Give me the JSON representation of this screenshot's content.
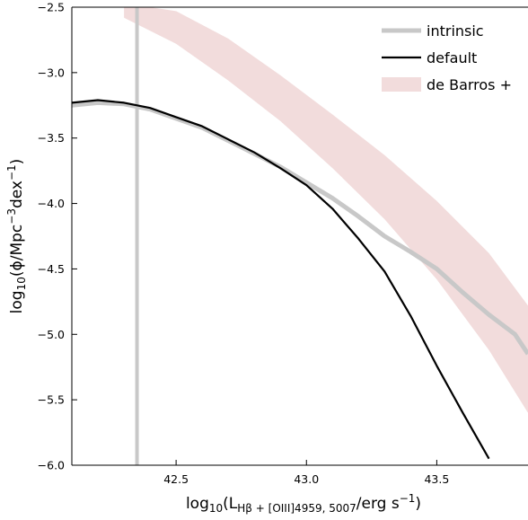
{
  "chart_data": {
    "type": "line",
    "xlabel": {
      "prefix": "log",
      "sub1": "10",
      "open": "(L",
      "sub2": "Hβ + [OIII]4959, 5007",
      "mid": "/erg s",
      "sup": "−1",
      "close": ")"
    },
    "ylabel": {
      "prefix": "log",
      "sub1": "10",
      "open": "(ϕ/Mpc",
      "sup1": "−3",
      "mid": "dex",
      "sup2": "−1",
      "close": ")"
    },
    "xlim": [
      42.1,
      43.85
    ],
    "ylim": [
      -6.0,
      -2.5
    ],
    "xticks": [
      {
        "value": 42.5,
        "label": "42.5"
      },
      {
        "value": 43.0,
        "label": "43.0"
      },
      {
        "value": 43.5,
        "label": "43.5"
      }
    ],
    "yticks": [
      {
        "value": -2.5,
        "label": "−2.5"
      },
      {
        "value": -3.0,
        "label": "−3.0"
      },
      {
        "value": -3.5,
        "label": "−3.5"
      },
      {
        "value": -4.0,
        "label": "−4.0"
      },
      {
        "value": -4.5,
        "label": "−4.5"
      },
      {
        "value": -5.0,
        "label": "−5.0"
      },
      {
        "value": -5.5,
        "label": "−5.5"
      },
      {
        "value": -6.0,
        "label": "−6.0"
      }
    ],
    "vline": {
      "x": 42.35,
      "color": "#c8c8c8"
    },
    "series": [
      {
        "name": "intrinsic",
        "color": "#c8c8c8",
        "x": [
          42.1,
          42.2,
          42.3,
          42.4,
          42.5,
          42.6,
          42.7,
          42.8,
          42.9,
          43.0,
          43.1,
          43.2,
          43.3,
          43.4,
          43.5,
          43.6,
          43.7,
          43.8,
          43.85
        ],
        "y": [
          -3.25,
          -3.23,
          -3.24,
          -3.28,
          -3.35,
          -3.42,
          -3.52,
          -3.62,
          -3.72,
          -3.84,
          -3.96,
          -4.1,
          -4.25,
          -4.37,
          -4.5,
          -4.68,
          -4.85,
          -5.0,
          -5.15
        ]
      },
      {
        "name": "default",
        "color": "#000000",
        "x": [
          42.1,
          42.2,
          42.3,
          42.4,
          42.5,
          42.6,
          42.7,
          42.8,
          42.9,
          43.0,
          43.1,
          43.2,
          43.3,
          43.4,
          43.5,
          43.6,
          43.7
        ],
        "y": [
          -3.23,
          -3.21,
          -3.23,
          -3.27,
          -3.34,
          -3.41,
          -3.51,
          -3.61,
          -3.73,
          -3.86,
          -4.04,
          -4.27,
          -4.52,
          -4.86,
          -5.24,
          -5.6,
          -5.95
        ]
      }
    ],
    "band": {
      "name": "de Barros +",
      "color": "#f2dcdc",
      "x": [
        42.3,
        42.5,
        42.7,
        42.9,
        43.1,
        43.3,
        43.5,
        43.7,
        43.85
      ],
      "upper": [
        -2.47,
        -2.53,
        -2.74,
        -3.02,
        -3.32,
        -3.63,
        -3.98,
        -4.38,
        -4.78
      ],
      "lower": [
        -2.58,
        -2.78,
        -3.06,
        -3.37,
        -3.73,
        -4.12,
        -4.58,
        -5.12,
        -5.6
      ]
    },
    "legend": [
      {
        "label": "intrinsic",
        "kind": "line",
        "color": "#c8c8c8"
      },
      {
        "label": "default",
        "kind": "line",
        "color": "#000000"
      },
      {
        "label": "de Barros +",
        "kind": "band",
        "color": "#f2dcdc"
      }
    ],
    "legend_position": "top-right",
    "grid": false
  }
}
